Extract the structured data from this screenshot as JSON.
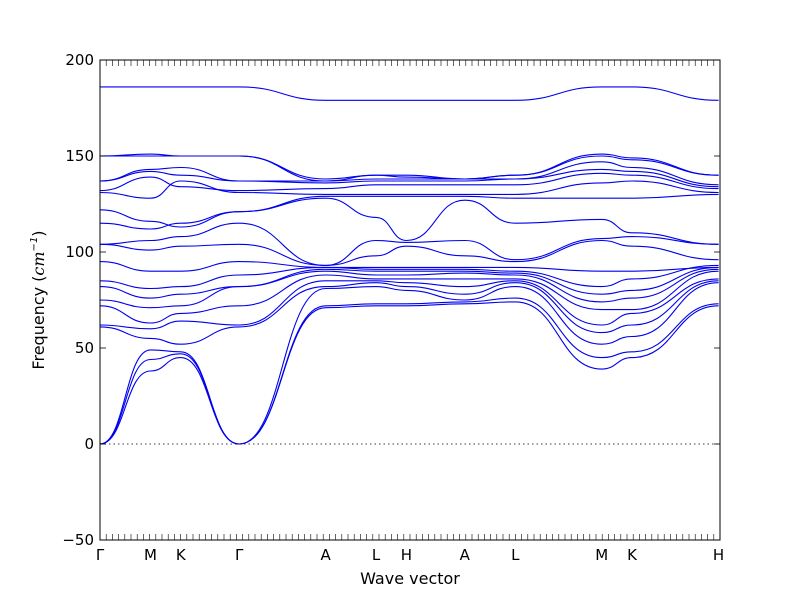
{
  "chart_data": {
    "type": "line",
    "title": "",
    "xlabel": "Wave vector",
    "ylabel_prefix": "Frequency (",
    "ylabel_unit": "cm",
    "ylabel_exp": "−1",
    "ylabel_suffix": ")",
    "ylim": [
      -50,
      200
    ],
    "yticks": [
      -50,
      0,
      50,
      100,
      150,
      200
    ],
    "xlim": [
      0,
      8.6
    ],
    "high_symmetry_points": [
      {
        "label": "Γ",
        "x": 0.0
      },
      {
        "label": "M",
        "x": 0.7
      },
      {
        "label": "K",
        "x": 1.12
      },
      {
        "label": "Γ",
        "x": 1.93
      },
      {
        "label": "A",
        "x": 3.13
      },
      {
        "label": "L",
        "x": 3.83
      },
      {
        "label": "H",
        "x": 4.25
      },
      {
        "label": "A",
        "x": 5.06
      },
      {
        "label": "L",
        "x": 5.76
      },
      {
        "label": "M",
        "x": 6.96
      },
      {
        "label": "K",
        "x": 7.38
      },
      {
        "label": "H",
        "x": 8.58
      }
    ],
    "dotted_zero_line": true,
    "grid": false,
    "series_color": "#0000ee",
    "series": [
      {
        "x": [
          0,
          0.7,
          1.12,
          1.93,
          3.13,
          3.83,
          4.25,
          5.06,
          5.76,
          6.96,
          7.38,
          8.58
        ],
        "y": [
          0,
          38,
          45,
          0,
          71,
          72,
          72,
          73,
          74,
          39,
          45,
          72
        ]
      },
      {
        "x": [
          0,
          0.7,
          1.12,
          1.93,
          3.13,
          3.83,
          4.25,
          5.06,
          5.76,
          6.96,
          7.38,
          8.58
        ],
        "y": [
          0,
          44,
          47,
          0,
          72,
          73,
          73,
          74,
          76,
          45,
          48,
          73
        ]
      },
      {
        "x": [
          0,
          0.7,
          1.12,
          1.93,
          3.13,
          3.83,
          4.25,
          5.06,
          5.76,
          6.96,
          7.38,
          8.58
        ],
        "y": [
          0,
          49,
          48,
          0,
          81,
          82,
          80,
          75,
          82,
          52,
          56,
          84
        ]
      },
      {
        "x": [
          0,
          0.7,
          1.12,
          1.93,
          3.13,
          3.83,
          4.25,
          5.06,
          5.76,
          6.96,
          7.38,
          8.58
        ],
        "y": [
          61,
          55,
          52,
          61,
          82,
          84,
          82,
          78,
          84,
          58,
          62,
          85
        ]
      },
      {
        "x": [
          0,
          0.7,
          1.12,
          1.93,
          3.13,
          3.83,
          4.25,
          5.06,
          5.76,
          6.96,
          7.38,
          8.58
        ],
        "y": [
          62,
          60,
          64,
          62,
          85,
          85,
          84,
          82,
          85,
          62,
          68,
          86
        ]
      },
      {
        "x": [
          0,
          0.7,
          1.12,
          1.93,
          3.13,
          3.83,
          4.25,
          5.06,
          5.76,
          6.96,
          7.38,
          8.58
        ],
        "y": [
          72,
          63,
          68,
          72,
          88,
          86,
          86,
          86,
          86,
          70,
          70,
          90
        ]
      },
      {
        "x": [
          0,
          0.7,
          1.12,
          1.93,
          3.13,
          3.83,
          4.25,
          5.06,
          5.76,
          6.96,
          7.38,
          8.58
        ],
        "y": [
          75,
          71,
          72,
          82,
          90,
          88,
          88,
          89,
          88,
          74,
          76,
          91
        ]
      },
      {
        "x": [
          0,
          0.7,
          1.12,
          1.93,
          3.13,
          3.83,
          4.25,
          5.06,
          5.76,
          6.96,
          7.38,
          8.58
        ],
        "y": [
          82,
          76,
          78,
          82,
          91,
          90,
          90,
          90,
          89,
          78,
          80,
          92
        ]
      },
      {
        "x": [
          0,
          0.7,
          1.12,
          1.93,
          3.13,
          3.83,
          4.25,
          5.06,
          5.76,
          6.96,
          7.38,
          8.58
        ],
        "y": [
          85,
          81,
          82,
          88,
          92,
          91,
          91,
          91,
          90,
          82,
          86,
          93
        ]
      },
      {
        "x": [
          0,
          0.7,
          1.12,
          1.93,
          3.13,
          3.83,
          4.25,
          5.06,
          5.76,
          6.96,
          7.38,
          8.58
        ],
        "y": [
          95,
          90,
          90,
          95,
          92,
          92,
          92,
          92,
          92,
          90,
          90,
          92
        ]
      },
      {
        "x": [
          0,
          0.7,
          1.12,
          1.93,
          3.13,
          3.83,
          4.25,
          5.06,
          5.76,
          6.96,
          7.38,
          8.58
        ],
        "y": [
          104,
          101,
          103,
          104,
          93,
          98,
          103,
          98,
          95,
          106,
          103,
          96
        ]
      },
      {
        "x": [
          0,
          0.7,
          1.12,
          1.93,
          3.13,
          3.83,
          4.25,
          5.06,
          5.76,
          6.96,
          7.38,
          8.58
        ],
        "y": [
          104,
          106,
          108,
          115,
          93,
          106,
          105,
          106,
          96,
          107,
          108,
          104
        ]
      },
      {
        "x": [
          0,
          0.7,
          1.12,
          1.93,
          3.13,
          3.83,
          4.25,
          5.06,
          5.76,
          6.96,
          7.38,
          8.58
        ],
        "y": [
          115,
          112,
          115,
          121,
          128,
          118,
          106,
          127,
          115,
          117,
          110,
          104
        ]
      },
      {
        "x": [
          0,
          0.7,
          1.12,
          1.93,
          3.13,
          3.83,
          4.25,
          5.06,
          5.76,
          6.96,
          7.38,
          8.58
        ],
        "y": [
          122,
          116,
          113,
          121,
          129,
          129,
          129,
          129,
          128,
          128,
          128,
          130
        ]
      },
      {
        "x": [
          0,
          0.7,
          1.12,
          1.93,
          3.13,
          3.83,
          4.25,
          5.06,
          5.76,
          6.96,
          7.38,
          8.58
        ],
        "y": [
          131,
          128,
          137,
          131,
          130,
          130,
          130,
          130,
          130,
          136,
          137,
          131
        ]
      },
      {
        "x": [
          0,
          0.7,
          1.12,
          1.93,
          3.13,
          3.83,
          4.25,
          5.06,
          5.76,
          6.96,
          7.38,
          8.58
        ],
        "y": [
          132,
          139,
          134,
          132,
          133,
          135,
          135,
          135,
          135,
          141,
          140,
          133
        ]
      },
      {
        "x": [
          0,
          0.7,
          1.12,
          1.93,
          3.13,
          3.83,
          4.25,
          5.06,
          5.76,
          6.96,
          7.38,
          8.58
        ],
        "y": [
          137,
          142,
          140,
          137,
          136,
          137,
          137,
          137,
          138,
          143,
          142,
          134
        ]
      },
      {
        "x": [
          0,
          0.7,
          1.12,
          1.93,
          3.13,
          3.83,
          4.25,
          5.06,
          5.76,
          6.96,
          7.38,
          8.58
        ],
        "y": [
          137,
          143,
          144,
          137,
          137,
          138,
          138,
          138,
          138,
          147,
          144,
          135
        ]
      },
      {
        "x": [
          0,
          0.7,
          1.12,
          1.93,
          3.13,
          3.83,
          4.25,
          5.06,
          5.76,
          6.96,
          7.38,
          8.58
        ],
        "y": [
          150,
          150,
          150,
          150,
          137,
          140,
          139,
          138,
          140,
          150,
          148,
          140
        ]
      },
      {
        "x": [
          0,
          0.7,
          1.12,
          1.93,
          3.13,
          3.83,
          4.25,
          5.06,
          5.76,
          6.96,
          7.38,
          8.58
        ],
        "y": [
          150,
          151,
          150,
          150,
          138,
          140,
          140,
          138,
          140,
          151,
          149,
          140
        ]
      },
      {
        "x": [
          0,
          0.7,
          1.12,
          1.93,
          3.13,
          3.83,
          4.25,
          5.06,
          5.76,
          6.96,
          7.38,
          8.58
        ],
        "y": [
          186,
          186,
          186,
          186,
          179,
          179,
          179,
          179,
          179,
          186,
          186,
          179
        ]
      }
    ]
  }
}
